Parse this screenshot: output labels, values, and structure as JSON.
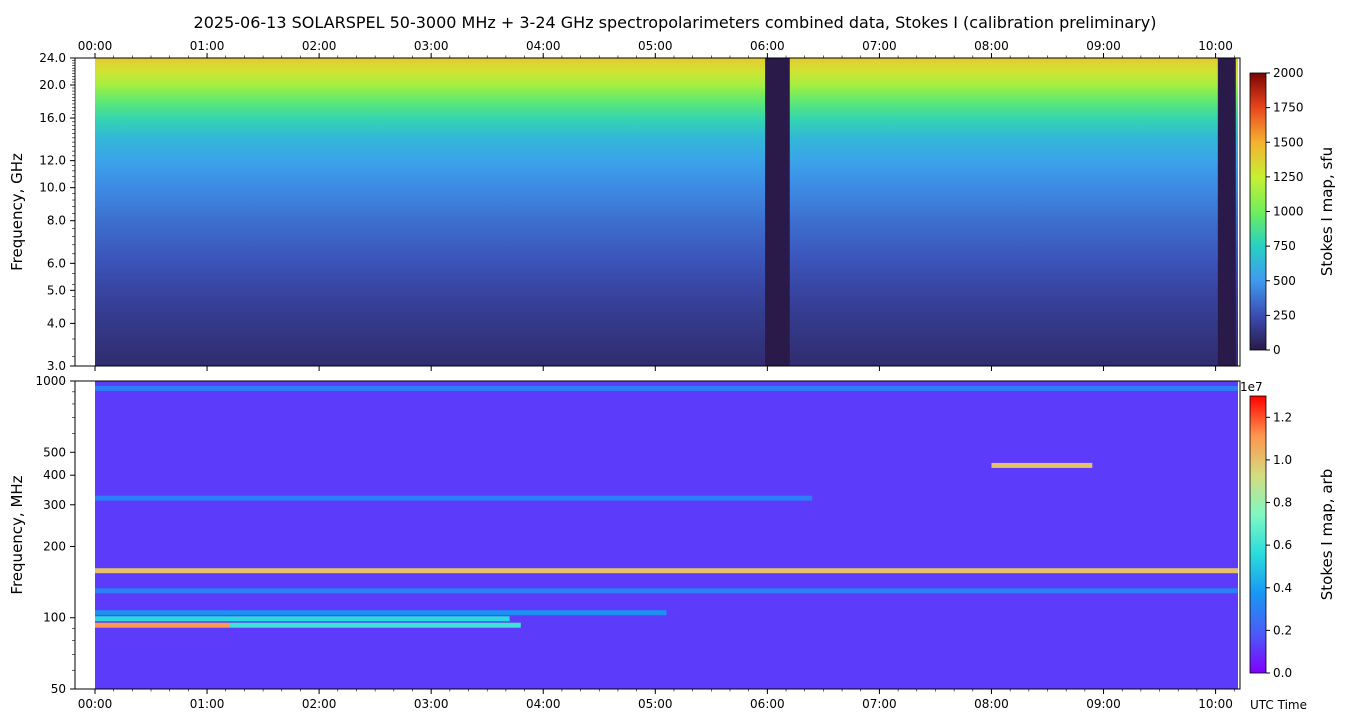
{
  "title": "2025-06-13  SOLARSPEL  50-3000 MHz  +  3-24 GHz  spectropolarimeters combined data,  Stokes I  (calibration preliminary)",
  "time_ticks": [
    "00:00",
    "01:00",
    "02:00",
    "03:00",
    "04:00",
    "05:00",
    "06:00",
    "07:00",
    "08:00",
    "09:00",
    "10:00"
  ],
  "xlabel": "UTC Time",
  "chart_data": [
    {
      "type": "heatmap",
      "name": "top-panel",
      "ylabel": "Frequency, GHz",
      "yscale": "log",
      "ylim": [
        3.0,
        24.0
      ],
      "xlim_hours": [
        0.0,
        10.2
      ],
      "yticks": [
        3.0,
        4.0,
        5.0,
        6.0,
        8.0,
        10.0,
        12.0,
        16.0,
        20.0,
        24.0
      ],
      "ytick_labels": [
        "3.0",
        "4.0",
        "5.0",
        "6.0",
        "8.0",
        "10.0",
        "12.0",
        "16.0",
        "20.0",
        "24.0"
      ],
      "colorbar": {
        "label": "Stokes I map, sfu",
        "range": [
          0,
          2000
        ],
        "ticks": [
          "0",
          "250",
          "500",
          "750",
          "1000",
          "1250",
          "1500",
          "1750",
          "2000"
        ],
        "colors": [
          "#2a1a4a",
          "#3b4db3",
          "#3f9af0",
          "#27d0c4",
          "#6fef5a",
          "#c8ef32",
          "#f6b131",
          "#e8461c",
          "#7a0403"
        ]
      },
      "data_gaps_hours": [
        [
          5.98,
          6.2
        ],
        [
          10.02,
          10.18
        ]
      ],
      "profile_sfu_by_freq": [
        {
          "freq_ghz": 3.0,
          "sfu": 90
        },
        {
          "freq_ghz": 4.0,
          "sfu": 150
        },
        {
          "freq_ghz": 5.0,
          "sfu": 210
        },
        {
          "freq_ghz": 6.0,
          "sfu": 270
        },
        {
          "freq_ghz": 8.0,
          "sfu": 360
        },
        {
          "freq_ghz": 10.0,
          "sfu": 450
        },
        {
          "freq_ghz": 12.0,
          "sfu": 540
        },
        {
          "freq_ghz": 14.0,
          "sfu": 640
        },
        {
          "freq_ghz": 16.0,
          "sfu": 800
        },
        {
          "freq_ghz": 18.0,
          "sfu": 950
        },
        {
          "freq_ghz": 20.0,
          "sfu": 1150
        },
        {
          "freq_ghz": 22.0,
          "sfu": 1300
        },
        {
          "freq_ghz": 24.0,
          "sfu": 1400
        }
      ]
    },
    {
      "type": "heatmap",
      "name": "bottom-panel",
      "ylabel": "Frequency, MHz",
      "yscale": "log",
      "ylim": [
        50,
        1000
      ],
      "xlim_hours": [
        0.0,
        10.2
      ],
      "yticks": [
        50,
        100,
        200,
        300,
        400,
        500,
        1000
      ],
      "ytick_labels": [
        "50",
        "100",
        "200",
        "300",
        "400",
        "500",
        "1000"
      ],
      "colorbar": {
        "label": "Stokes I map, arb",
        "exponent": "1e7",
        "range": [
          0.0,
          1.3
        ],
        "ticks": [
          "0.0",
          "0.2",
          "0.4",
          "0.6",
          "0.8",
          "1.0",
          "1.2"
        ],
        "colors": [
          "#7f00ff",
          "#4a5cf7",
          "#1996f3",
          "#2adcdc",
          "#7ff8c2",
          "#d4dc7f",
          "#ff954e",
          "#ff0000"
        ]
      },
      "background_value": 0.12,
      "bands": [
        {
          "freq_mhz": 93,
          "t_start": 0.0,
          "t_end": 1.2,
          "value": 1.1
        },
        {
          "freq_mhz": 93,
          "t_start": 1.2,
          "t_end": 3.8,
          "value": 0.6
        },
        {
          "freq_mhz": 99,
          "t_start": 0.0,
          "t_end": 3.7,
          "value": 0.55
        },
        {
          "freq_mhz": 105,
          "t_start": 0.0,
          "t_end": 5.1,
          "value": 0.35
        },
        {
          "freq_mhz": 130,
          "t_start": 0.0,
          "t_end": 10.2,
          "value": 0.3
        },
        {
          "freq_mhz": 158,
          "t_start": 0.0,
          "t_end": 10.2,
          "value": 1.0
        },
        {
          "freq_mhz": 320,
          "t_start": 0.0,
          "t_end": 6.4,
          "value": 0.3
        },
        {
          "freq_mhz": 440,
          "t_start": 8.0,
          "t_end": 8.9,
          "value": 1.0
        },
        {
          "freq_mhz": 930,
          "t_start": 0.0,
          "t_end": 10.2,
          "value": 0.3
        }
      ]
    }
  ]
}
